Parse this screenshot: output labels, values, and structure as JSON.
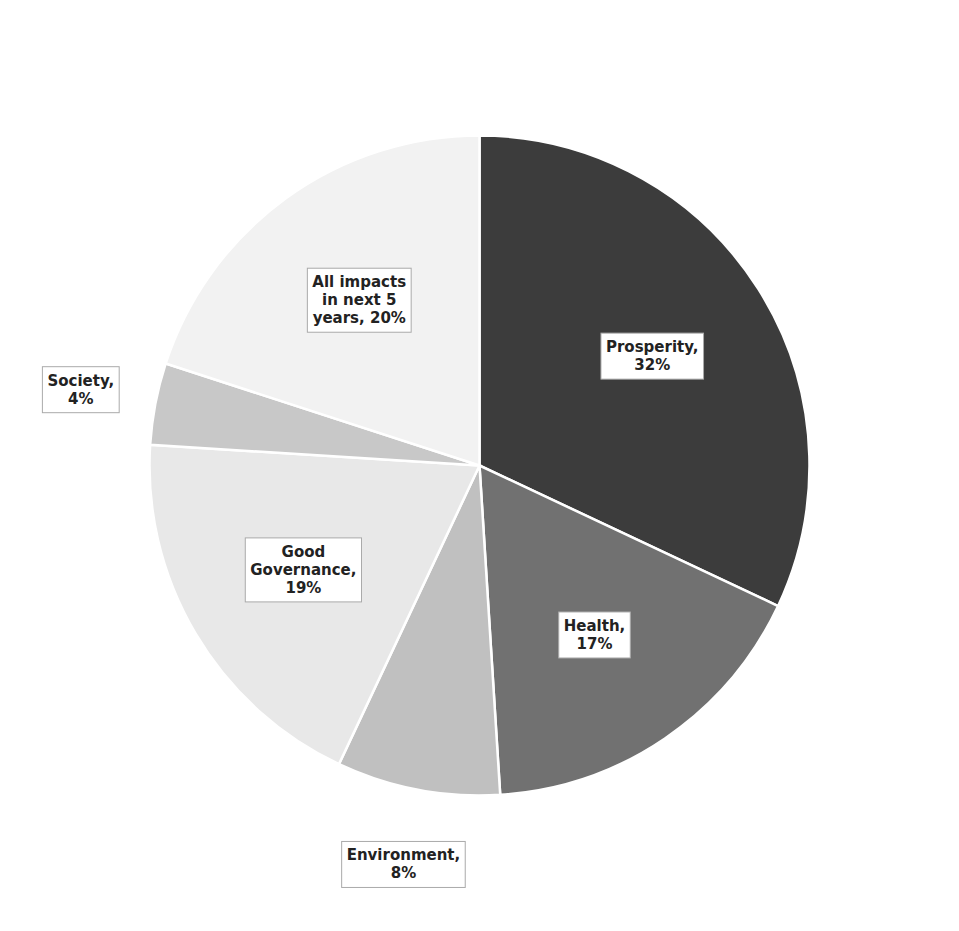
{
  "chart_data": {
    "type": "pie",
    "categories": [
      "Prosperity,\n32%",
      "Health,\n17%",
      "Environment,\n8%",
      "Good\nGovernance,\n19%",
      "Society,\n4%",
      "All impacts\nin next 5\nyears, 20%"
    ],
    "values": [
      32,
      17,
      8,
      19,
      4,
      20
    ],
    "colors": [
      "#3c3c3c",
      "#717171",
      "#c0c0c0",
      "#e8e8e8",
      "#c8c8c8",
      "#f2f2f2"
    ]
  }
}
